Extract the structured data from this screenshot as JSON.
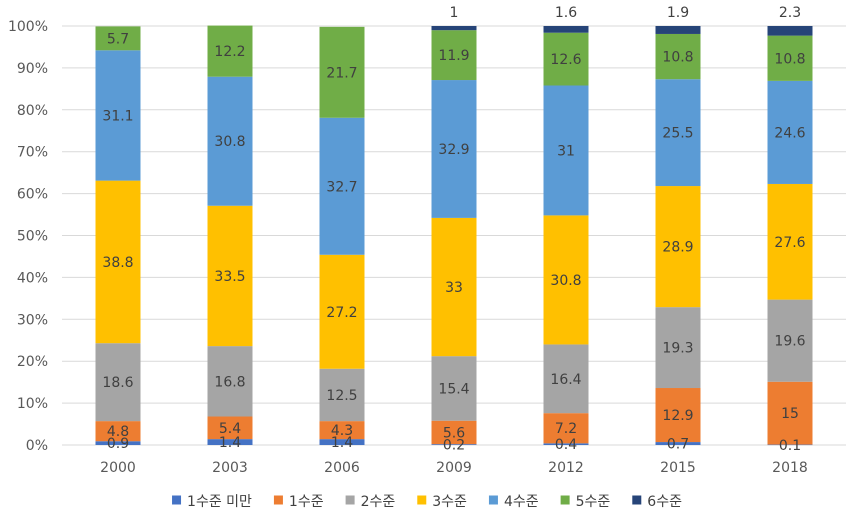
{
  "chart_data": {
    "type": "bar",
    "stacked": true,
    "percent": true,
    "title": "",
    "xlabel": "",
    "ylabel": "",
    "ylim": [
      0,
      100
    ],
    "yticks": [
      "0%",
      "10%",
      "20%",
      "30%",
      "40%",
      "50%",
      "60%",
      "70%",
      "80%",
      "90%",
      "100%"
    ],
    "categories": [
      "2000",
      "2003",
      "2006",
      "2009",
      "2012",
      "2015",
      "2018"
    ],
    "legend_position": "bottom",
    "series": [
      {
        "name": "1수준 미만",
        "color": "#4472C4",
        "values": [
          0.9,
          1.4,
          1.4,
          0.2,
          0.4,
          0.7,
          0.1
        ],
        "labels": [
          "0.9",
          "1.4",
          "1.4",
          "0.2",
          "0.4",
          "0.7",
          "0.1"
        ]
      },
      {
        "name": "1수준",
        "color": "#ED7D31",
        "values": [
          4.8,
          5.4,
          4.3,
          5.6,
          7.2,
          12.9,
          15
        ],
        "labels": [
          "4.8",
          "5.4",
          "4.3",
          "5.6",
          "7.2",
          "12.9",
          "15"
        ]
      },
      {
        "name": "2수준",
        "color": "#A5A5A5",
        "values": [
          18.6,
          16.8,
          12.5,
          15.4,
          16.4,
          19.3,
          19.6
        ],
        "labels": [
          "18.6",
          "16.8",
          "12.5",
          "15.4",
          "16.4",
          "19.3",
          "19.6"
        ]
      },
      {
        "name": "3수준",
        "color": "#FFC000",
        "values": [
          38.8,
          33.5,
          27.2,
          33,
          30.8,
          28.9,
          27.6
        ],
        "labels": [
          "38.8",
          "33.5",
          "27.2",
          "33",
          "30.8",
          "28.9",
          "27.6"
        ]
      },
      {
        "name": "4수준",
        "color": "#5B9BD5",
        "values": [
          31.1,
          30.8,
          32.7,
          32.9,
          31,
          25.5,
          24.6
        ],
        "labels": [
          "31.1",
          "30.8",
          "32.7",
          "32.9",
          "31",
          "25.5",
          "24.6"
        ]
      },
      {
        "name": "5수준",
        "color": "#70AD47",
        "values": [
          5.7,
          12.2,
          21.7,
          11.9,
          12.6,
          10.8,
          10.8
        ],
        "labels": [
          "5.7",
          "12.2",
          "21.7",
          "11.9",
          "12.6",
          "10.8",
          "10.8"
        ]
      },
      {
        "name": "6수준",
        "color": "#264478",
        "values": [
          0,
          0,
          0,
          1,
          1.6,
          1.9,
          2.3
        ],
        "labels": [
          "",
          "",
          "",
          "1",
          "1.6",
          "1.9",
          "2.3"
        ]
      }
    ]
  }
}
